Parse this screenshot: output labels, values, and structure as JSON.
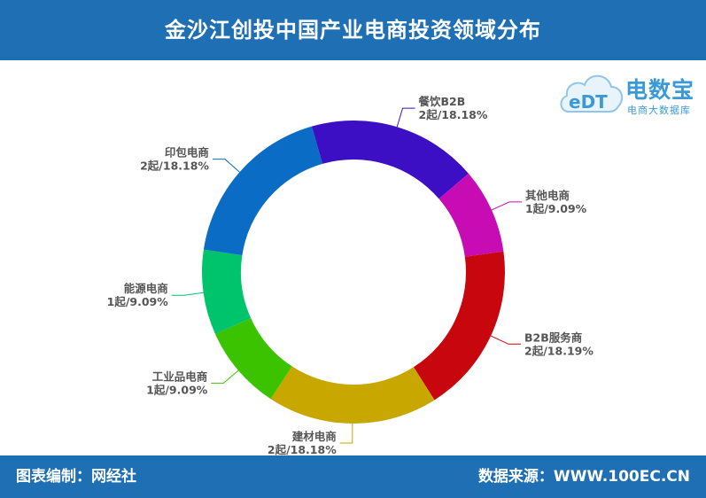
{
  "header": {
    "title": "金沙江创投中国产业电商投资领域分布"
  },
  "footer": {
    "left": "图表编制：网经社",
    "right": "数据来源：WWW.100EC.CN"
  },
  "logo": {
    "badge_text": "eDT",
    "name": "电数宝",
    "subtitle": "电商大数据库"
  },
  "chart_data": {
    "type": "pie",
    "donut": true,
    "title": "金沙江创投中国产业电商投资领域分布",
    "slices": [
      {
        "name": "餐饮B2B",
        "count": 2,
        "label_value": "2起/18.18%",
        "percent": 18.18,
        "color": "#3c0fc4"
      },
      {
        "name": "其他电商",
        "count": 1,
        "label_value": "1起/9.09%",
        "percent": 9.09,
        "color": "#c80cb3"
      },
      {
        "name": "B2B服务商",
        "count": 2,
        "label_value": "2起/18.19%",
        "percent": 18.19,
        "color": "#c8060e"
      },
      {
        "name": "建材电商",
        "count": 2,
        "label_value": "2起/18.18%",
        "percent": 18.18,
        "color": "#c8a800"
      },
      {
        "name": "工业品电商",
        "count": 1,
        "label_value": "1起/9.09%",
        "percent": 9.09,
        "color": "#3cc300"
      },
      {
        "name": "能源电商",
        "count": 1,
        "label_value": "1起/9.09%",
        "percent": 9.09,
        "color": "#00c46c"
      },
      {
        "name": "印包电商",
        "count": 2,
        "label_value": "2起/18.18%",
        "percent": 18.18,
        "color": "#0a6cc4"
      }
    ]
  }
}
